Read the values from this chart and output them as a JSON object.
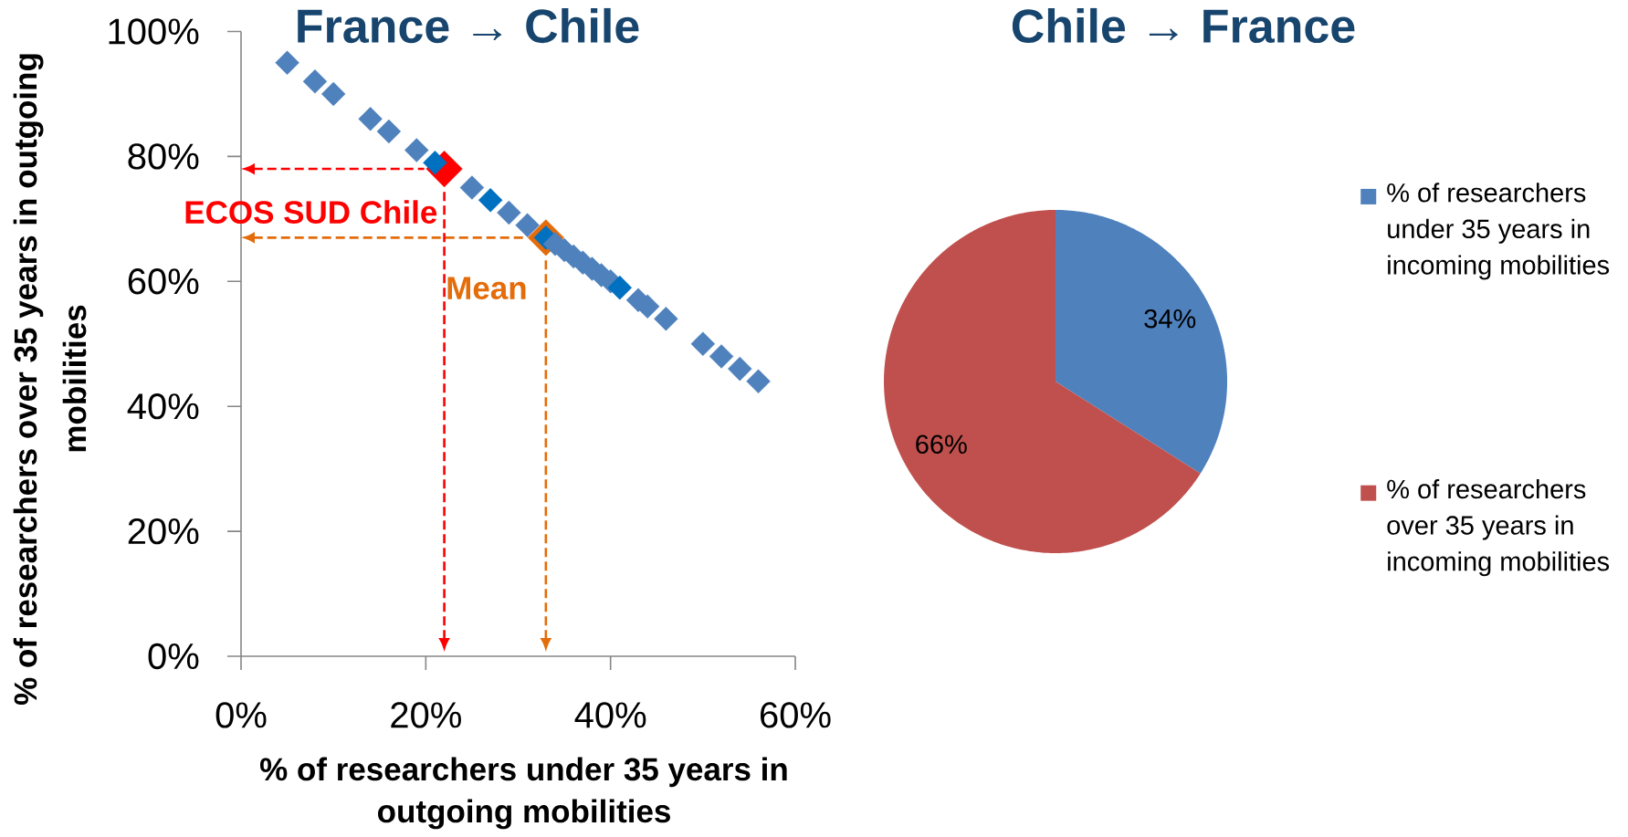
{
  "chart_data": [
    {
      "type": "scatter",
      "title": "France → Chile",
      "xlabel": "% of researchers under 35 years in outgoing mobilities",
      "ylabel": "% of researchers over 35 years in outgoing mobilities",
      "xlim": [
        0,
        60
      ],
      "ylim": [
        0,
        100
      ],
      "xticks": [
        {
          "value": 0,
          "label": "0%"
        },
        {
          "value": 20,
          "label": "20%"
        },
        {
          "value": 40,
          "label": "40%"
        },
        {
          "value": 60,
          "label": "60%"
        }
      ],
      "yticks": [
        {
          "value": 0,
          "label": "0%"
        },
        {
          "value": 20,
          "label": "20%"
        },
        {
          "value": 40,
          "label": "40%"
        },
        {
          "value": 60,
          "label": "60%"
        },
        {
          "value": 80,
          "label": "80%"
        },
        {
          "value": 100,
          "label": "100%"
        }
      ],
      "marker": "diamond",
      "series": [
        {
          "name": "ECOS SUD Chile",
          "color": "#ff0000",
          "x": [
            22
          ],
          "values": [
            78
          ]
        },
        {
          "name": "Mean",
          "color": "#e46c0a",
          "x": [
            33
          ],
          "values": [
            67
          ]
        },
        {
          "color": "#4f81bd",
          "x": [
            5,
            8,
            10,
            14,
            16,
            19,
            21,
            25,
            27,
            29,
            31,
            33,
            34,
            35,
            36,
            37,
            38,
            39,
            40,
            41,
            43,
            44,
            46,
            50,
            52,
            54,
            56
          ],
          "values": [
            95,
            92,
            90,
            86,
            84,
            81,
            79,
            75,
            73,
            71,
            69,
            67,
            66,
            65,
            64,
            63,
            62,
            61,
            60,
            59,
            57,
            56,
            54,
            50,
            48,
            46,
            44
          ],
          "colors": [
            "#4f81bd",
            "#4f81bd",
            "#4f81bd",
            "#4f81bd",
            "#4f81bd",
            "#4f81bd",
            "#0070c0",
            "#4f81bd",
            "#0070c0",
            "#4f81bd",
            "#4f81bd",
            "#0070c0",
            "#4f81bd",
            "#4f81bd",
            "#4f81bd",
            "#4f81bd",
            "#4f81bd",
            "#4f81bd",
            "#4f81bd",
            "#0070c0",
            "#4f81bd",
            "#4f81bd",
            "#4f81bd",
            "#4f81bd",
            "#4f81bd",
            "#4f81bd",
            "#4f81bd"
          ]
        }
      ]
    },
    {
      "type": "pie",
      "title": "Chile → France",
      "categories": [
        "% of researchers under 35 years in incoming mobilities",
        "% of researchers over 35 years in incoming mobilities"
      ],
      "values": [
        34,
        66
      ],
      "colors": [
        "#4f81bd",
        "#c0504d"
      ],
      "value_labels": [
        "34%",
        "66%"
      ],
      "legend": "right"
    }
  ]
}
